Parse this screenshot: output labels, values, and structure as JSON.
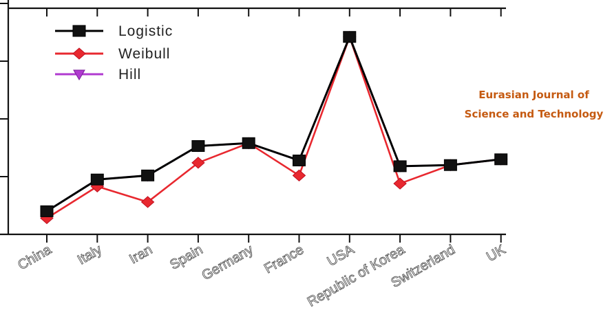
{
  "chart_data": {
    "type": "line",
    "categories": [
      "China",
      "Italy",
      "Iran",
      "Spain",
      "Germany",
      "France",
      "USA",
      "Republic of Korea",
      "Switzerland",
      "UK"
    ],
    "ylim": [
      0,
      4
    ],
    "grid": false,
    "legend_placement": "top-left",
    "series": [
      {
        "name": "Logistic",
        "color": "#000000",
        "marker": "square",
        "values": [
          0.4,
          0.95,
          1.02,
          1.53,
          1.58,
          1.28,
          3.42,
          1.18,
          1.2,
          1.3
        ]
      },
      {
        "name": "Weibull",
        "color": "#e8282f",
        "marker": "diamond",
        "values": [
          0.28,
          0.83,
          0.56,
          1.24,
          1.58,
          1.02,
          3.42,
          0.88,
          1.2,
          1.3
        ]
      },
      {
        "name": "Hill",
        "color": "#b03ad0",
        "marker": "triangle-down",
        "values": [
          0.4,
          0.95,
          1.02,
          1.53,
          1.58,
          1.28,
          3.42,
          1.18,
          1.2,
          1.3
        ]
      }
    ]
  },
  "watermark": {
    "line1": "Eurasian Journal of",
    "line2": "Science and Technology"
  }
}
